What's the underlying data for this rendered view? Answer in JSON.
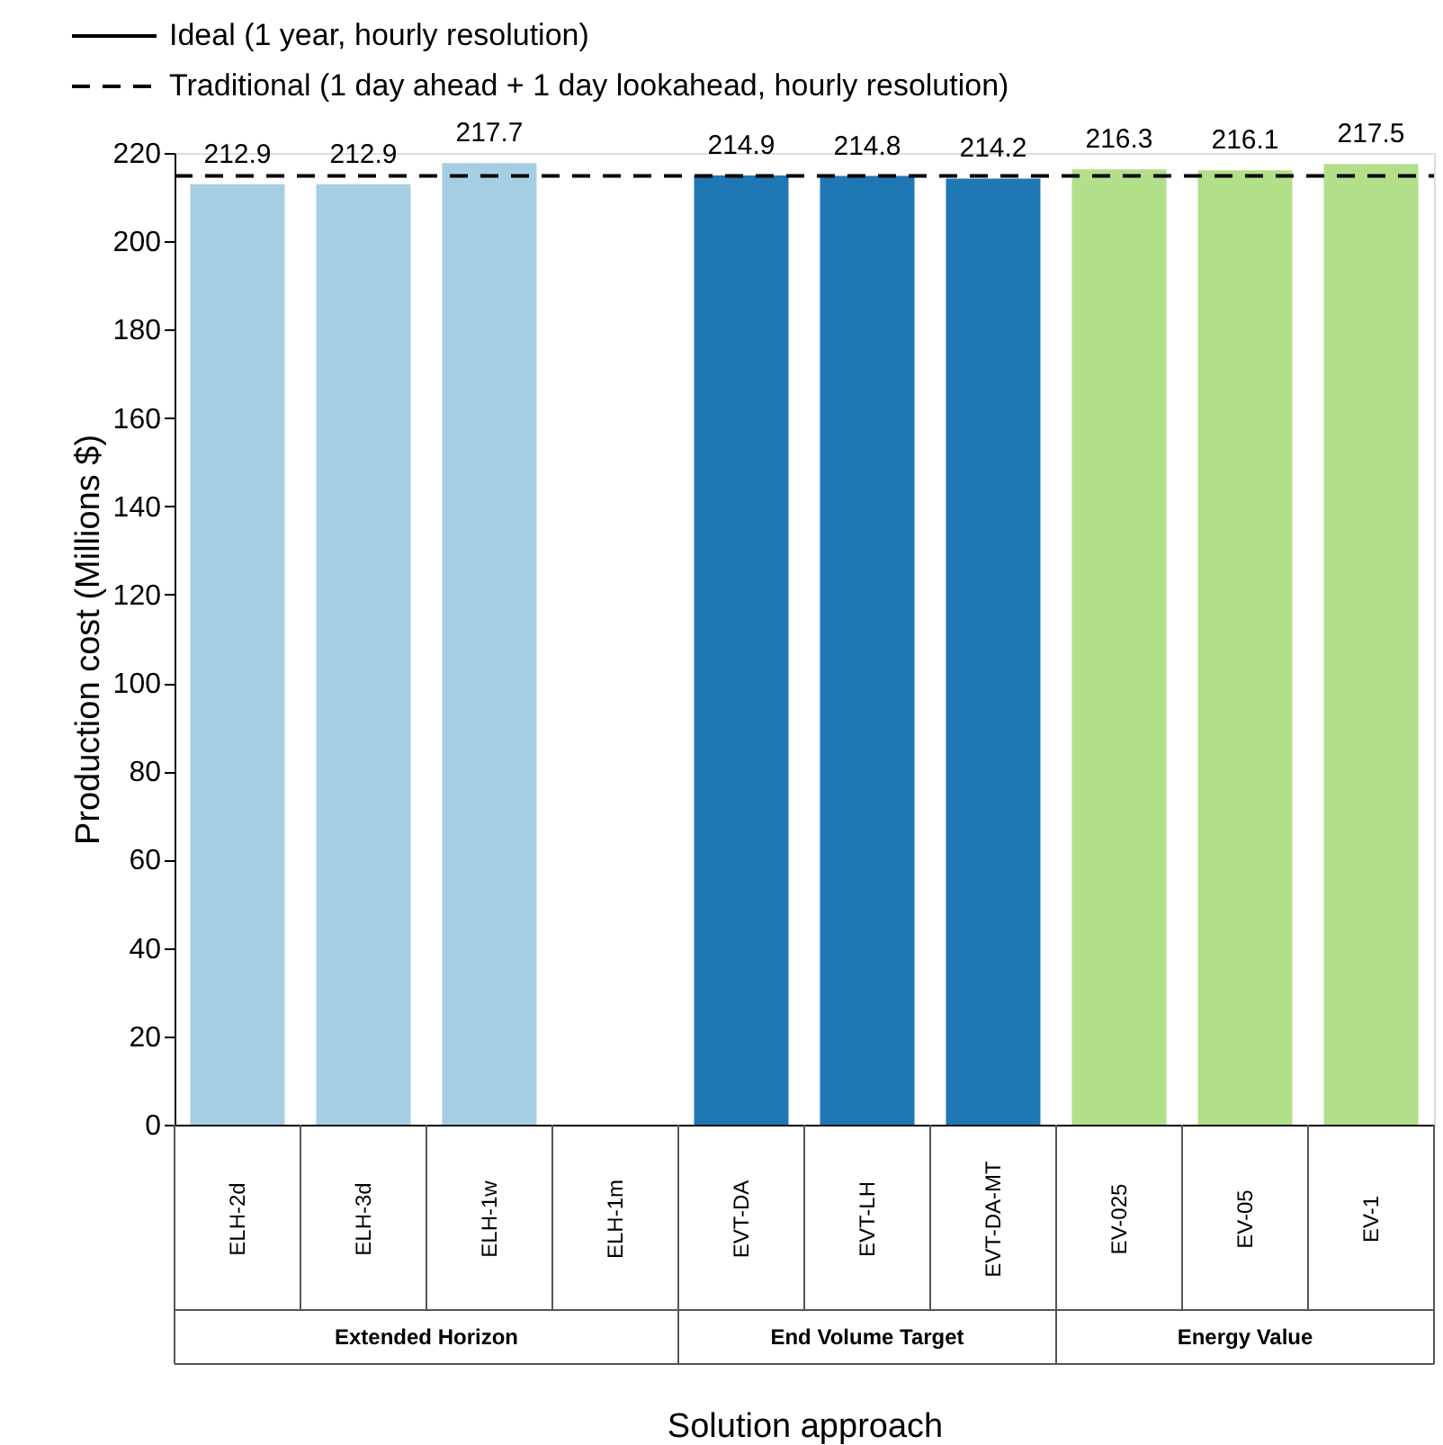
{
  "chart_data": {
    "type": "bar",
    "xlabel": "Solution approach",
    "ylabel": "Production cost (Millions $)",
    "categories": [
      "ELH-2d",
      "ELH-3d",
      "ELH-1w",
      "ELH-1m",
      "EVT-DA",
      "EVT-LH",
      "EVT-DA-MT",
      "EV-025",
      "EV-05",
      "EV-1"
    ],
    "values": [
      212.9,
      212.9,
      217.7,
      null,
      214.9,
      214.8,
      214.2,
      216.3,
      216.1,
      217.5
    ],
    "colors": [
      "#a6cee3",
      "#a6cee3",
      "#a6cee3",
      "#a6cee3",
      "#1f78b4",
      "#1f78b4",
      "#1f78b4",
      "#b2df8a",
      "#b2df8a",
      "#b2df8a"
    ],
    "ylim": [
      0,
      220
    ],
    "yticks": [
      0,
      20,
      40,
      60,
      80,
      100,
      120,
      140,
      160,
      180,
      200,
      220
    ],
    "data_labels": true,
    "grid": false,
    "legend": "top left",
    "ref_lines": [
      {
        "axis": "y",
        "value": 214.8,
        "label": "Traditional (1 day ahead + 1 day lookahead, hourly resolution)",
        "line_style": "dashed",
        "color": "#000000"
      }
    ],
    "annotations": [
      "Ideal (1 year, hourly resolution)",
      "Extended Horizon",
      "End Volume Target",
      "Energy Value"
    ]
  }
}
